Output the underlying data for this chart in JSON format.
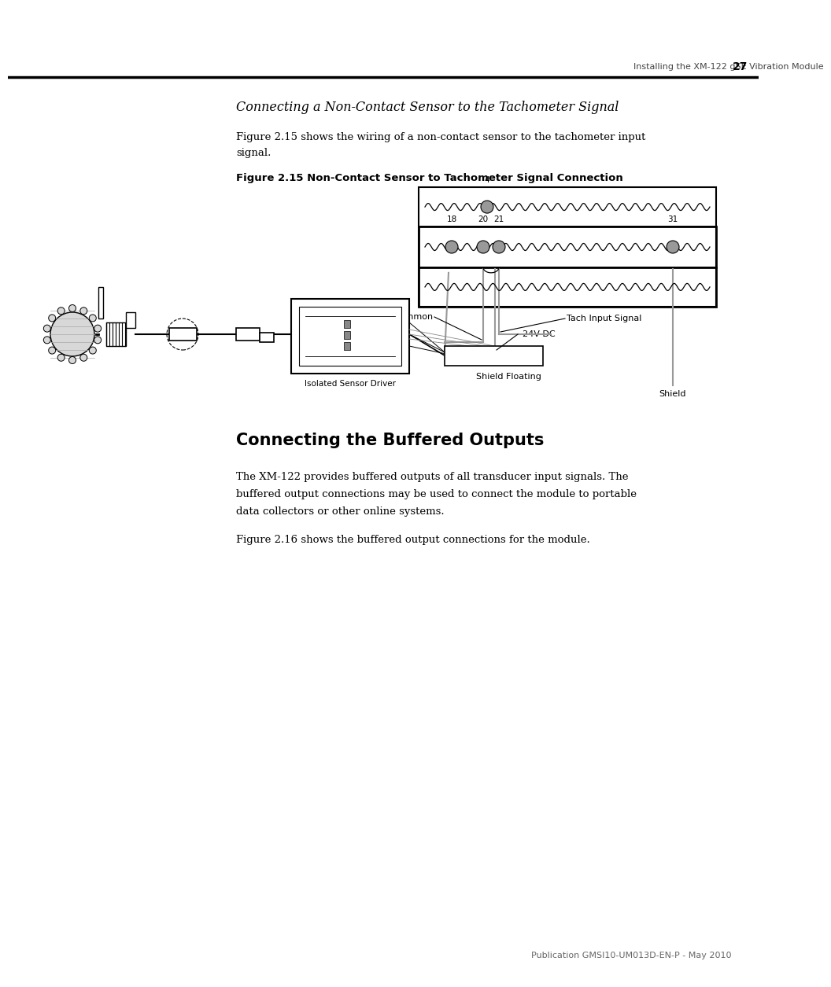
{
  "page_header_text": "Installing the XM-122 gSE Vibration Module",
  "page_number": "27",
  "section_italic_title": "Connecting a Non-Contact Sensor to the Tachometer Signal",
  "para1_line1": "Figure 2.15 shows the wiring of a non-contact sensor to the tachometer input",
  "para1_line2": "signal.",
  "figure_caption": "Figure 2.15 Non-Contact Sensor to Tachometer Signal Connection",
  "section_bold_title": "Connecting the Buffered Outputs",
  "para2_line1": "The XM-122 provides buffered outputs of all transducer input signals. The",
  "para2_line2": "buffered output connections may be used to connect the module to portable",
  "para2_line3": "data collectors or other online systems.",
  "para3": "Figure 2.16 shows the buffered output connections for the module.",
  "footer_text": "Publication GMSI10-UM013D-EN-P - May 2010",
  "background_color": "#ffffff",
  "text_color": "#000000",
  "gray_color": "#aaaaaa"
}
